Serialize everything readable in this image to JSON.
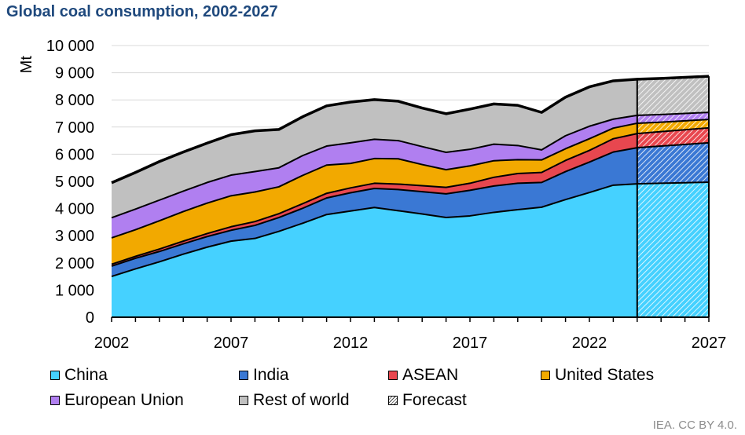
{
  "chart_data": {
    "type": "area",
    "stacked": true,
    "title": "Global coal consumption, 2002-2027",
    "xlabel": "",
    "ylabel": "Mt",
    "ylim": [
      0,
      10000
    ],
    "yticks": [
      0,
      1000,
      2000,
      3000,
      4000,
      5000,
      6000,
      7000,
      8000,
      9000,
      10000
    ],
    "ytick_labels": [
      "0",
      "1 000",
      "2 000",
      "3 000",
      "4 000",
      "5 000",
      "6 000",
      "7 000",
      "8 000",
      "9 000",
      "10 000"
    ],
    "xlim": [
      2002,
      2027
    ],
    "xtick_labels": [
      "2002",
      "2007",
      "2012",
      "2017",
      "2022",
      "2027"
    ],
    "grid": "horizontal",
    "legend_position": "bottom",
    "forecast_start": 2024,
    "x": [
      2002,
      2003,
      2004,
      2005,
      2006,
      2007,
      2008,
      2009,
      2010,
      2011,
      2012,
      2013,
      2014,
      2015,
      2016,
      2017,
      2018,
      2019,
      2020,
      2021,
      2022,
      2023,
      2024,
      2025,
      2026,
      2027
    ],
    "series": [
      {
        "name": "China",
        "color": "#45d1ff",
        "values": [
          1500,
          1780,
          2040,
          2320,
          2580,
          2800,
          2900,
          3160,
          3460,
          3780,
          3910,
          4040,
          3920,
          3800,
          3670,
          3730,
          3860,
          3960,
          4050,
          4330,
          4590,
          4860,
          4910,
          4930,
          4950,
          4970
        ]
      },
      {
        "name": "India",
        "color": "#3a78d4",
        "values": [
          380,
          390,
          380,
          380,
          390,
          400,
          480,
          510,
          550,
          610,
          670,
          700,
          780,
          820,
          870,
          940,
          970,
          970,
          910,
          1030,
          1120,
          1220,
          1330,
          1370,
          1410,
          1450
        ]
      },
      {
        "name": "ASEAN",
        "color": "#e8474f",
        "values": [
          70,
          70,
          90,
          100,
          110,
          130,
          140,
          140,
          170,
          170,
          180,
          190,
          200,
          220,
          240,
          260,
          320,
          360,
          370,
          410,
          430,
          490,
          520,
          530,
          540,
          550
        ]
      },
      {
        "name": "United States",
        "color": "#f2a900",
        "values": [
          970,
          980,
          1040,
          1090,
          1120,
          1140,
          1090,
          990,
          1040,
          1040,
          900,
          910,
          930,
          780,
          650,
          640,
          610,
          510,
          460,
          430,
          430,
          390,
          380,
          350,
          330,
          310
        ]
      },
      {
        "name": "European Union",
        "color": "#b07ff0",
        "values": [
          740,
          760,
          760,
          750,
          760,
          760,
          750,
          700,
          730,
          700,
          760,
          710,
          670,
          660,
          640,
          610,
          610,
          520,
          370,
          480,
          460,
          330,
          290,
          280,
          270,
          260
        ]
      },
      {
        "name": "Rest of world",
        "color": "#c0c0c0",
        "values": [
          1290,
          1350,
          1420,
          1440,
          1450,
          1490,
          1500,
          1410,
          1430,
          1480,
          1500,
          1460,
          1450,
          1420,
          1420,
          1480,
          1480,
          1480,
          1380,
          1420,
          1450,
          1410,
          1330,
          1330,
          1330,
          1330
        ]
      }
    ],
    "legend": [
      "China",
      "India",
      "ASEAN",
      "United States",
      "European Union",
      "Rest of world",
      "Forecast"
    ]
  },
  "legend_items": [
    {
      "label": "China",
      "color": "#45d1ff"
    },
    {
      "label": "India",
      "color": "#3a78d4"
    },
    {
      "label": "ASEAN",
      "color": "#e8474f"
    },
    {
      "label": "United States",
      "color": "#f2a900"
    },
    {
      "label": "European Union",
      "color": "#b07ff0"
    },
    {
      "label": "Rest of world",
      "color": "#c0c0c0"
    },
    {
      "label": "Forecast",
      "color": "hatched"
    }
  ],
  "credit": "IEA. CC BY 4.0."
}
